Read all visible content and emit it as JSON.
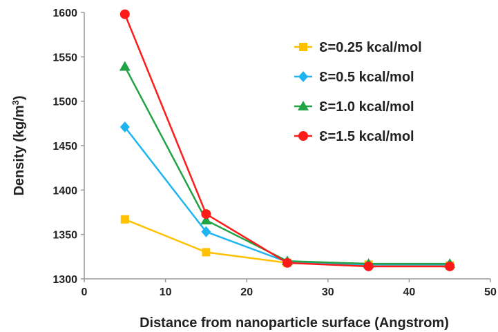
{
  "chart_data": {
    "type": "line",
    "title": "",
    "xlabel": "Distance from nanoparticle surface (Angstrom)",
    "ylabel": "Density  (kg/m",
    "ylabel_sup": "3",
    "ylabel_close": ")",
    "xlim": [
      0,
      50
    ],
    "ylim": [
      1300,
      1600
    ],
    "xticks": [
      0,
      10,
      20,
      30,
      40,
      50
    ],
    "yticks": [
      1300,
      1350,
      1400,
      1450,
      1500,
      1550,
      1600
    ],
    "grid": false,
    "legend_position": "top-right",
    "x": [
      5,
      15,
      25,
      35,
      45
    ],
    "series": [
      {
        "name": "Ɛ=0.25 kcal/mol",
        "values": [
          1367,
          1330,
          1318,
          1316,
          1315
        ],
        "color": "#FFC000",
        "marker": "square"
      },
      {
        "name": "Ɛ=0.5 kcal/mol",
        "values": [
          1471,
          1353,
          1319,
          1316,
          1316
        ],
        "color": "#1FB4F0",
        "marker": "diamond"
      },
      {
        "name": "Ɛ=1.0 kcal/mol",
        "values": [
          1539,
          1366,
          1320,
          1317,
          1317
        ],
        "color": "#21A346",
        "marker": "triangle"
      },
      {
        "name": "Ɛ=1.5 kcal/mol",
        "values": [
          1598,
          1373,
          1318,
          1314,
          1314
        ],
        "color": "#FF1A1A",
        "marker": "circle"
      }
    ]
  }
}
